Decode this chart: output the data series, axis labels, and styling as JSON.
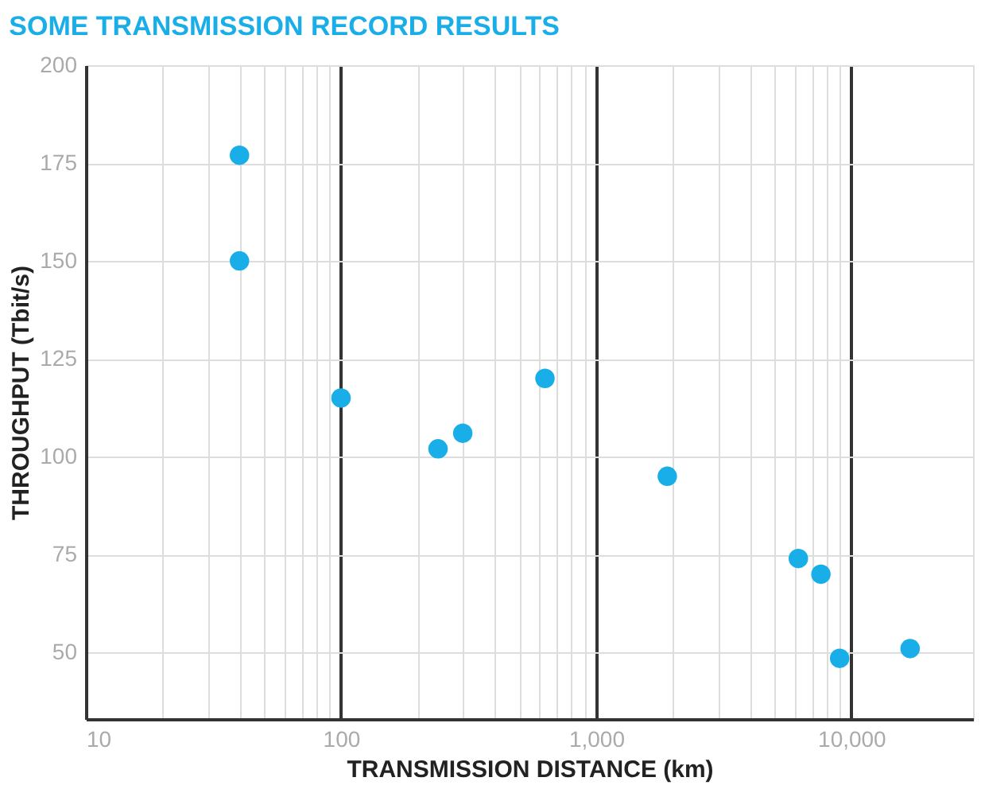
{
  "chart_data": {
    "type": "scatter",
    "title": "SOME TRANSMISSION RECORD RESULTS",
    "xlabel": "TRANSMISSION DISTANCE (km)",
    "ylabel": "THROUGHPUT (Tbit/s)",
    "x": [
      40,
      40,
      100,
      240,
      300,
      630,
      1900,
      6200,
      7600,
      9000,
      17000
    ],
    "series": [
      {
        "color": "#1aaee8",
        "values": [
          177,
          150,
          115,
          102,
          106,
          120,
          95,
          74,
          70,
          48.5,
          51
        ]
      }
    ],
    "log": "x",
    "marker": "circle",
    "grid": true,
    "xlim": [
      10,
      30000
    ],
    "ylim": [
      33,
      200
    ],
    "xticks": [
      10,
      {
        "value": 20,
        "label": null
      },
      {
        "value": 30,
        "label": null
      },
      {
        "value": 40,
        "label": null
      },
      {
        "value": 50,
        "label": null
      },
      {
        "value": 60,
        "label": null
      },
      {
        "value": 70,
        "label": null
      },
      {
        "value": 80,
        "label": null
      },
      {
        "value": 90,
        "label": null
      },
      100,
      {
        "value": 200,
        "label": null
      },
      {
        "value": 300,
        "label": null
      },
      {
        "value": 400,
        "label": null
      },
      {
        "value": 500,
        "label": null
      },
      {
        "value": 600,
        "label": null
      },
      {
        "value": 700,
        "label": null
      },
      {
        "value": 800,
        "label": null
      },
      {
        "value": 900,
        "label": null
      },
      {
        "value": 1000,
        "label": "1,000"
      },
      {
        "value": 2000,
        "label": null
      },
      {
        "value": 3000,
        "label": null
      },
      {
        "value": 4000,
        "label": null
      },
      {
        "value": 5000,
        "label": null
      },
      {
        "value": 6000,
        "label": null
      },
      {
        "value": 7000,
        "label": null
      },
      {
        "value": 8000,
        "label": null
      },
      {
        "value": 9000,
        "label": null
      },
      {
        "value": 10000,
        "label": "10,000"
      }
    ],
    "yticks": [
      50,
      75,
      100,
      125,
      150,
      175,
      200
    ]
  }
}
